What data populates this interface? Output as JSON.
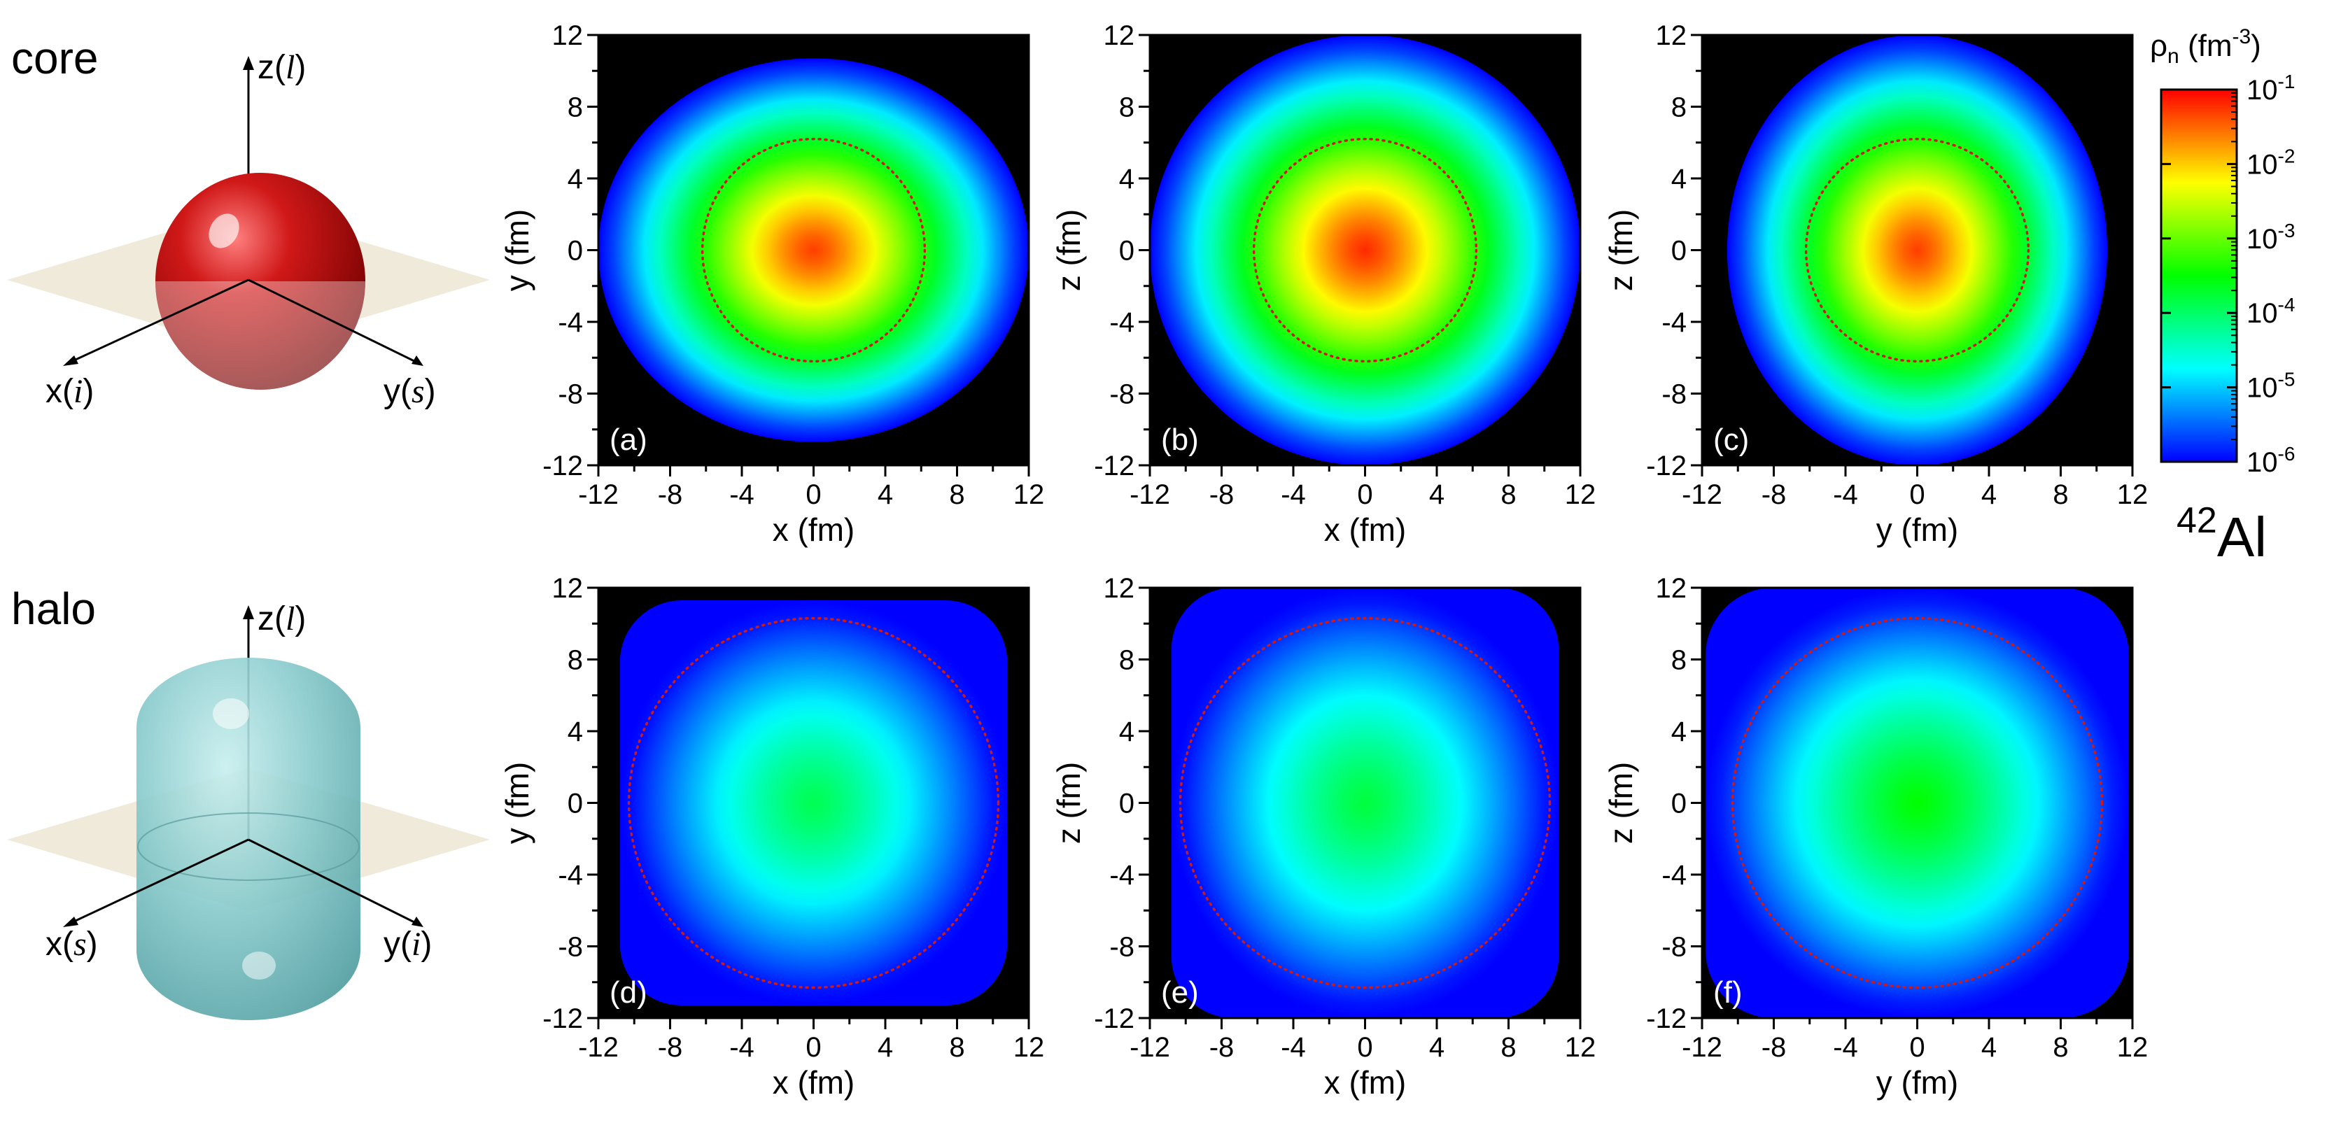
{
  "rows": [
    {
      "label": "core",
      "diagram": {
        "axis_z": "z(",
        "axis_z_it": "l",
        "axis_x": "x(",
        "axis_x_it": "i",
        "axis_y": "y(",
        "axis_y_it": "s"
      },
      "colors": {
        "shape": "#c01010"
      }
    },
    {
      "label": "halo",
      "diagram": {
        "axis_z": "z(",
        "axis_z_it": "l",
        "axis_x": "x(",
        "axis_x_it": "s",
        "axis_y": "y(",
        "axis_y_it": "i"
      },
      "colors": {
        "shape": "#7fc6c8"
      }
    }
  ],
  "colorbar": {
    "title_main": "ρ",
    "title_sub": "n",
    "title_unit": " (fm",
    "title_exp": "-3",
    "title_close": ")",
    "scale": "log",
    "range": [
      1e-06,
      0.1
    ],
    "ticks": [
      {
        "base": "10",
        "exp": "-1"
      },
      {
        "base": "10",
        "exp": "-2"
      },
      {
        "base": "10",
        "exp": "-3"
      },
      {
        "base": "10",
        "exp": "-4"
      },
      {
        "base": "10",
        "exp": "-5"
      },
      {
        "base": "10",
        "exp": "-6"
      }
    ],
    "colormap": [
      "#0000ff",
      "#00ffff",
      "#00ff00",
      "#ffff00",
      "#ff0000"
    ]
  },
  "nucleus": {
    "mass": "42",
    "symbol": "Al"
  },
  "chart_data": [
    {
      "panel": "(a)",
      "type": "heatmap",
      "xlabel": "x (fm)",
      "ylabel": "y (fm)",
      "xlim": [
        -12,
        12
      ],
      "ylim": [
        -12,
        12
      ],
      "ticks": [
        -12,
        -8,
        -4,
        0,
        4,
        8,
        12
      ],
      "component": "core",
      "rx": 12.0,
      "ry": 10.7,
      "peak_log": -1.3,
      "reference_circle_radius": 6.2
    },
    {
      "panel": "(b)",
      "type": "heatmap",
      "xlabel": "x (fm)",
      "ylabel": "z (fm)",
      "xlim": [
        -12,
        12
      ],
      "ylim": [
        -12,
        12
      ],
      "ticks": [
        -12,
        -8,
        -4,
        0,
        4,
        8,
        12
      ],
      "component": "core",
      "rx": 12.0,
      "ry": 12.0,
      "peak_log": -1.2,
      "reference_circle_radius": 6.2
    },
    {
      "panel": "(c)",
      "type": "heatmap",
      "xlabel": "y (fm)",
      "ylabel": "z (fm)",
      "xlim": [
        -12,
        12
      ],
      "ylim": [
        -12,
        12
      ],
      "ticks": [
        -12,
        -8,
        -4,
        0,
        4,
        8,
        12
      ],
      "component": "core",
      "rx": 10.6,
      "ry": 12.0,
      "peak_log": -1.3,
      "reference_circle_radius": 6.2
    },
    {
      "panel": "(d)",
      "type": "heatmap",
      "xlabel": "x (fm)",
      "ylabel": "y (fm)",
      "xlim": [
        -12,
        12
      ],
      "ylim": [
        -12,
        12
      ],
      "ticks": [
        -12,
        -8,
        -4,
        0,
        4,
        8,
        12
      ],
      "component": "halo",
      "rx": 10.8,
      "ry": 11.3,
      "peak_log": -3.9,
      "reference_circle_radius": 10.3
    },
    {
      "panel": "(e)",
      "type": "heatmap",
      "xlabel": "x (fm)",
      "ylabel": "z (fm)",
      "xlim": [
        -12,
        12
      ],
      "ylim": [
        -12,
        12
      ],
      "ticks": [
        -12,
        -8,
        -4,
        0,
        4,
        8,
        12
      ],
      "component": "halo",
      "rx": 10.8,
      "ry": 12.0,
      "peak_log": -3.8,
      "reference_circle_radius": 10.3
    },
    {
      "panel": "(f)",
      "type": "heatmap",
      "xlabel": "y (fm)",
      "ylabel": "z (fm)",
      "xlim": [
        -12,
        12
      ],
      "ylim": [
        -12,
        12
      ],
      "ticks": [
        -12,
        -8,
        -4,
        0,
        4,
        8,
        12
      ],
      "component": "halo",
      "rx": 11.8,
      "ry": 12.0,
      "peak_log": -3.5,
      "reference_circle_radius": 10.3
    }
  ]
}
